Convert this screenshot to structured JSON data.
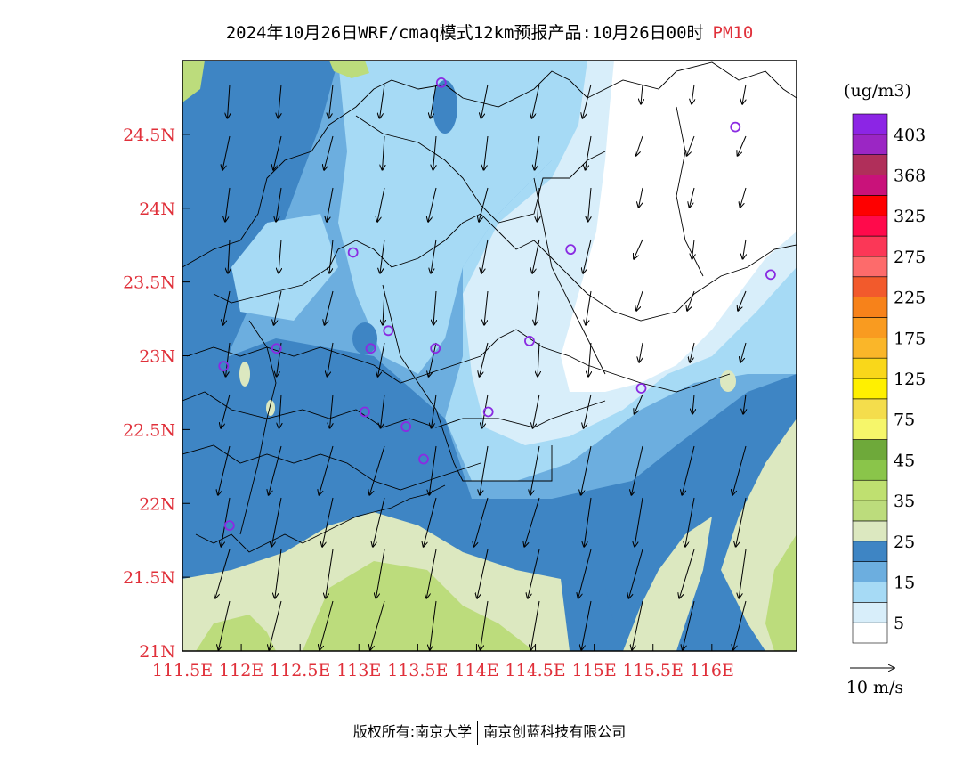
{
  "title": {
    "main": "2024年10月26日WRF/cmaq模式12km预报产品:10月26日00时",
    "pollutant": "PM10"
  },
  "map": {
    "lon_labels": [
      "111.5E",
      "112E",
      "112.5E",
      "113E",
      "113.5E",
      "114E",
      "114.5E",
      "115E",
      "115.5E",
      "116E"
    ],
    "lat_labels": [
      "24.5N",
      "24N",
      "23.5N",
      "23N",
      "22.5N",
      "22N",
      "21.5N",
      "21N"
    ],
    "stations_lonlat": [
      [
        113.7,
        24.85
      ],
      [
        116.2,
        24.55
      ],
      [
        112.95,
        23.7
      ],
      [
        114.8,
        23.72
      ],
      [
        116.5,
        23.55
      ],
      [
        112.3,
        23.05
      ],
      [
        113.1,
        23.05
      ],
      [
        113.25,
        23.17
      ],
      [
        113.65,
        23.05
      ],
      [
        114.45,
        23.1
      ],
      [
        111.85,
        22.93
      ],
      [
        115.4,
        22.78
      ],
      [
        113.05,
        22.62
      ],
      [
        113.4,
        22.52
      ],
      [
        114.1,
        22.62
      ],
      [
        113.55,
        22.3
      ],
      [
        111.9,
        21.85
      ]
    ]
  },
  "colorbar": {
    "unit": "(ug/m3)",
    "colors": [
      "#ffffff",
      "#d8eefa",
      "#a6daf5",
      "#6caedf",
      "#3e85c4",
      "#dce8c0",
      "#bcdc7c",
      "#bfe070",
      "#8ac54a",
      "#6ea93a",
      "#f6f66a",
      "#f4dd4c",
      "#fff000",
      "#f9d71a",
      "#fab629",
      "#f99b20",
      "#f7821a",
      "#f25a2c",
      "#fd6b6b",
      "#fb3757",
      "#ff0a4b",
      "#fe0000",
      "#c9127a",
      "#b02f5a",
      "#9b26c4",
      "#8c25e5"
    ],
    "labels": [
      "5",
      "15",
      "25",
      "35",
      "45",
      "75",
      "125",
      "175",
      "225",
      "275",
      "325",
      "368",
      "403"
    ],
    "wind_ref": "10  m/s"
  },
  "footer": {
    "left": "版权所有:南京大学",
    "right": "南京创蓝科技有限公司"
  }
}
